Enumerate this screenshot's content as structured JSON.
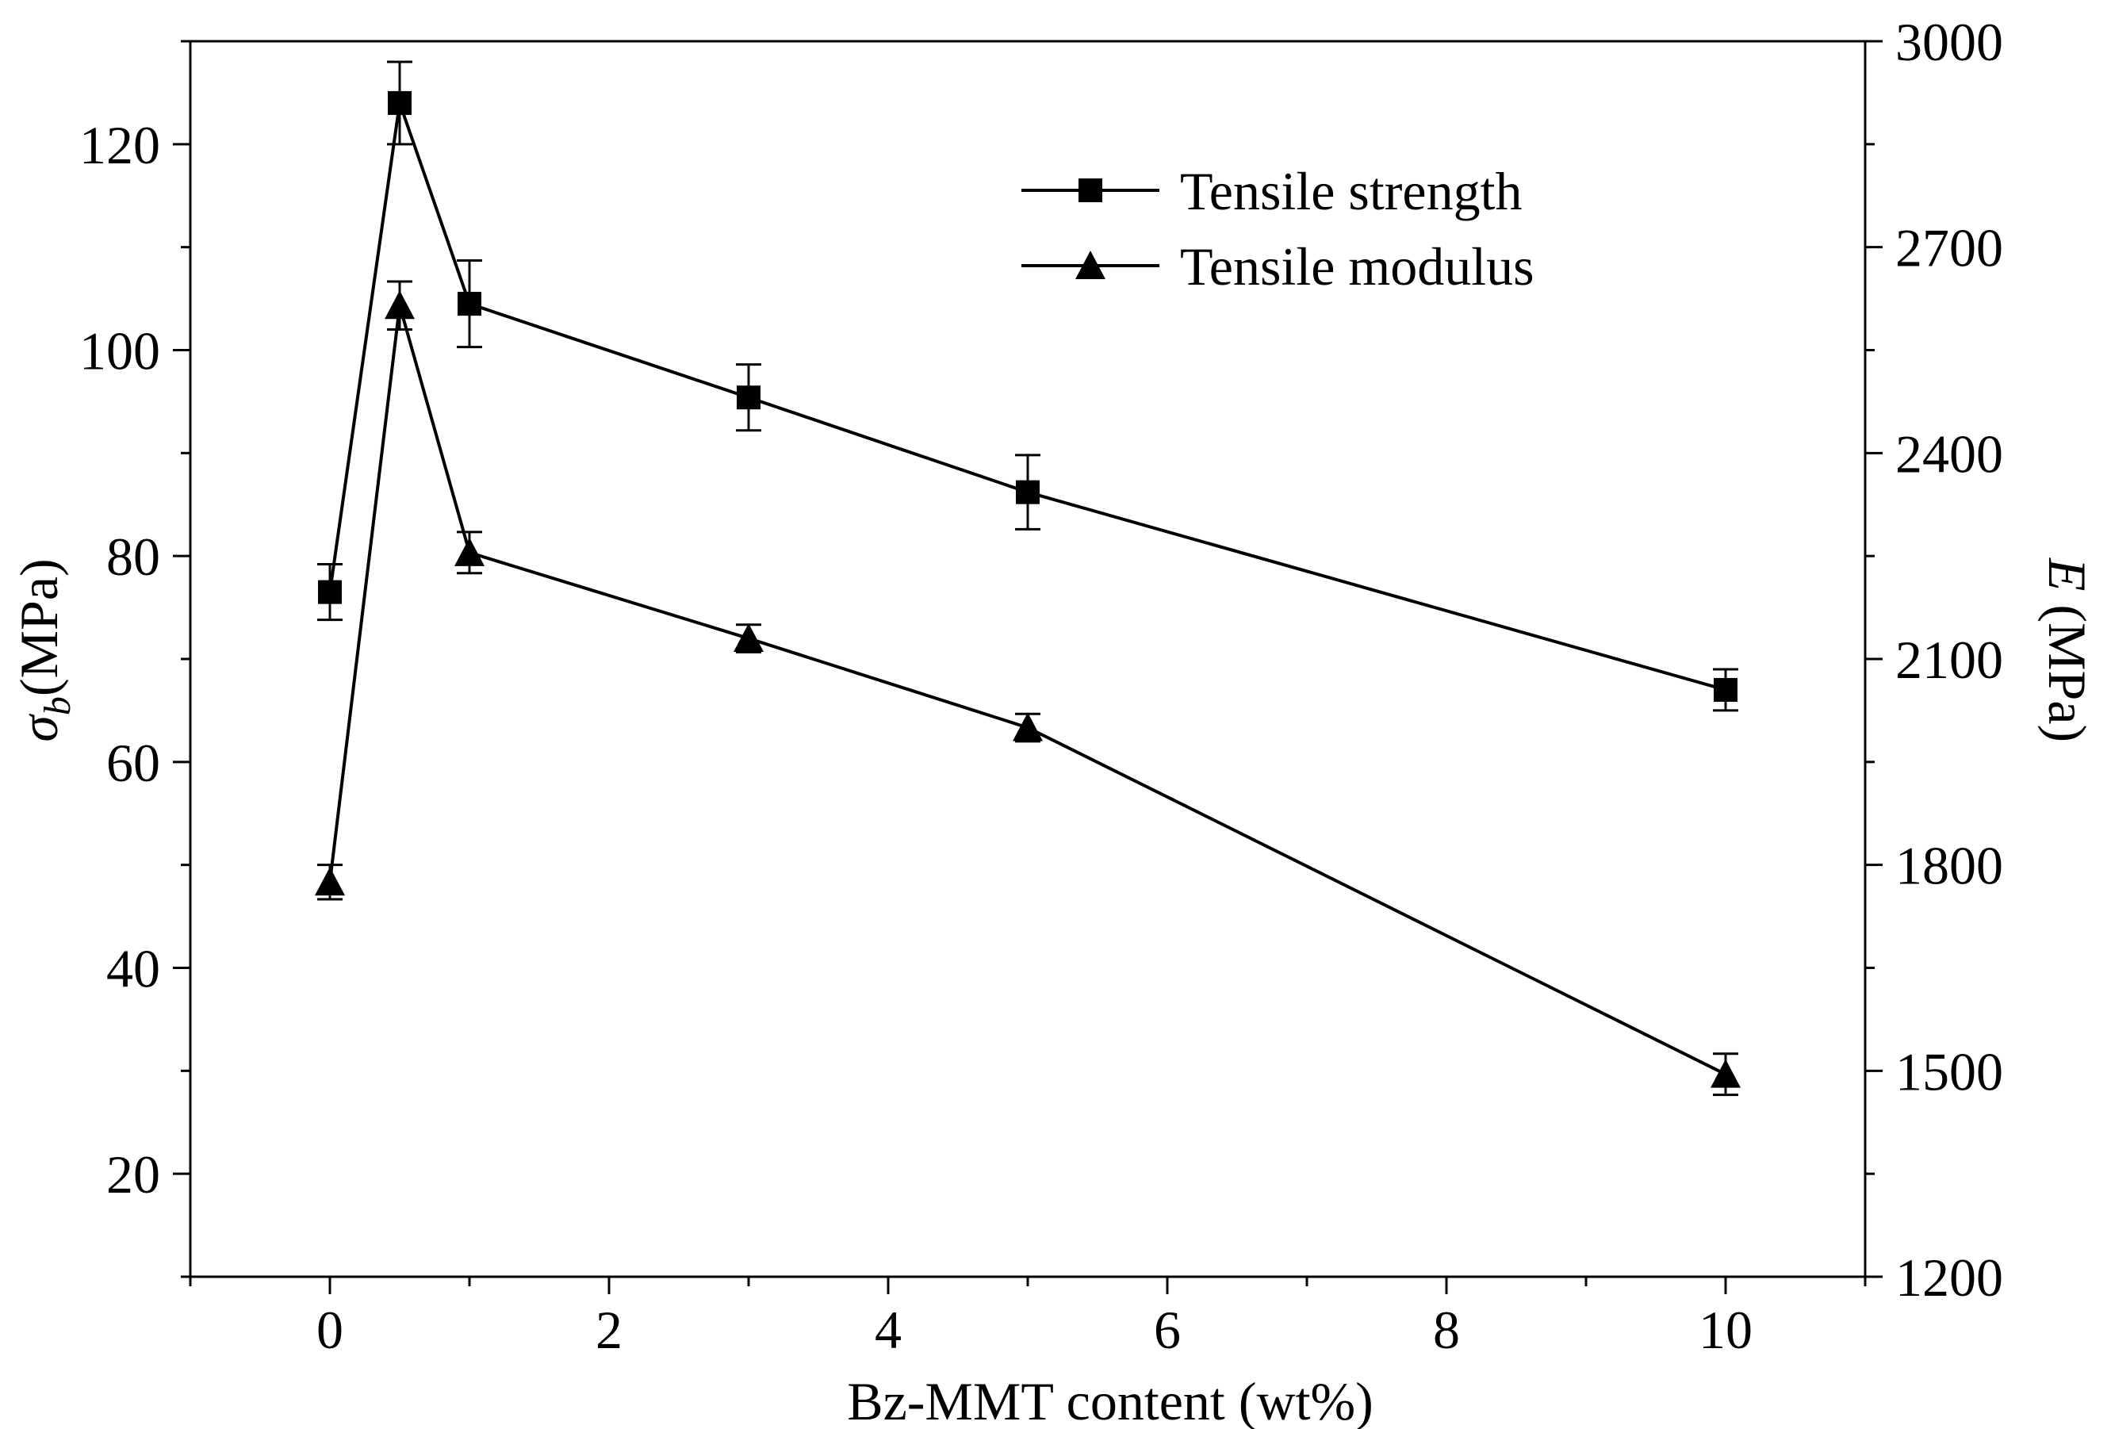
{
  "chart_data": {
    "type": "line",
    "title": "",
    "xlabel": "Bz-MMT content (wt%)",
    "ylabel_left": {
      "symbol": "σ",
      "subscript": "b",
      "unit": "(MPa)"
    },
    "ylabel_right": {
      "symbol": "E",
      "unit": " (MPa)"
    },
    "xlim": [
      -1,
      11
    ],
    "ylim_left": [
      10,
      130
    ],
    "ylim_right": [
      1200,
      3000
    ],
    "x_ticks": [
      0,
      2,
      4,
      6,
      8,
      10
    ],
    "y_left_ticks": [
      20,
      40,
      60,
      80,
      100,
      120
    ],
    "y_right_ticks": [
      1200,
      1500,
      1800,
      2100,
      2400,
      2700,
      3000
    ],
    "legend_position": "top-right",
    "series": [
      {
        "name": "Tensile strength",
        "marker": "square",
        "axis": "left",
        "x": [
          0,
          0.5,
          1,
          3,
          5,
          10
        ],
        "values": [
          76.5,
          124,
          104.5,
          95.4,
          86.2,
          67
        ],
        "errors": [
          2.7,
          4,
          4.2,
          3.2,
          3.6,
          2
        ]
      },
      {
        "name": "Tensile modulus",
        "marker": "triangle",
        "axis": "right",
        "x": [
          0,
          0.5,
          1,
          3,
          5,
          10
        ],
        "values": [
          1775,
          2615,
          2255,
          2130,
          2000,
          1495
        ],
        "errors": [
          25,
          35,
          30,
          20,
          20,
          30
        ]
      }
    ]
  }
}
